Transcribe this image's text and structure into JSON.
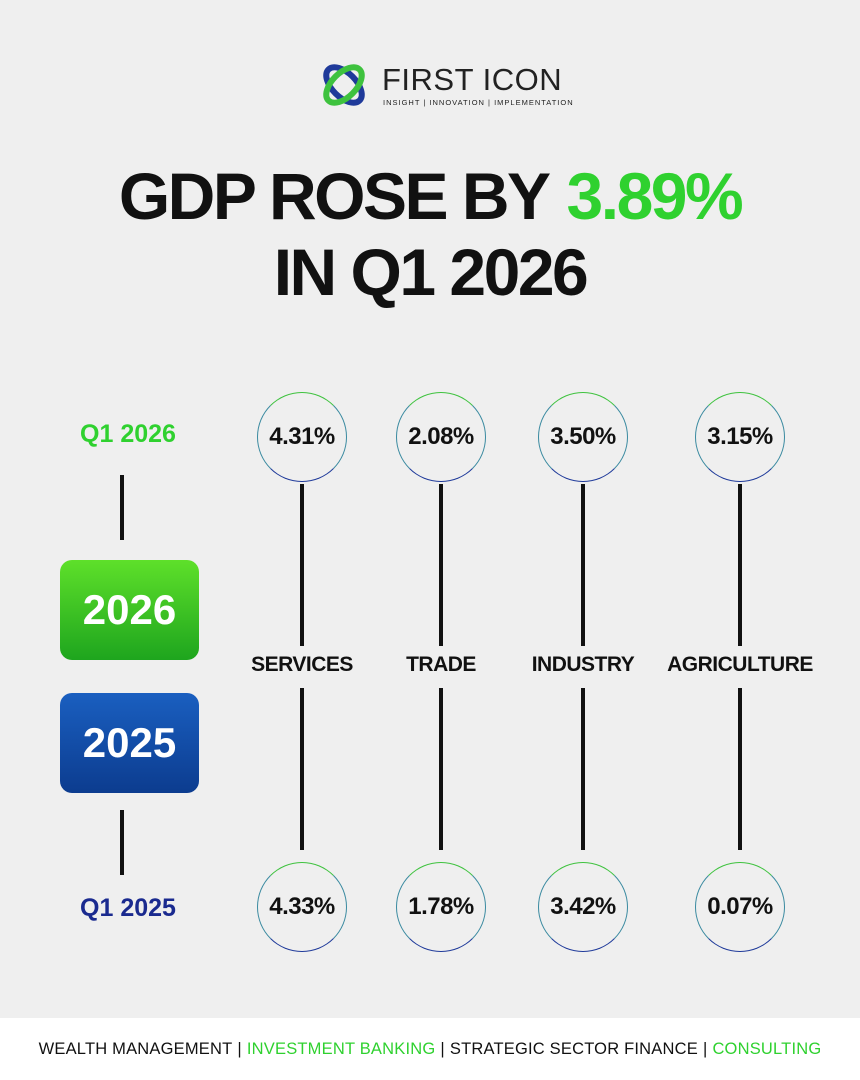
{
  "logo": {
    "name": "FIRST ICON",
    "tagline": "INSIGHT | INNOVATION | IMPLEMENTATION"
  },
  "headline": {
    "lead": "GDP ROSE BY",
    "highlight": "3.89%",
    "line2": "IN Q1 2026"
  },
  "rows": {
    "top_label": "Q1 2026",
    "bottom_label": "Q1 2025",
    "top_year": "2026",
    "bottom_year": "2025"
  },
  "sectors": [
    {
      "name": "SERVICES",
      "q1_2026": "4.31%",
      "q1_2025": "4.33%"
    },
    {
      "name": "TRADE",
      "q1_2026": "2.08%",
      "q1_2025": "1.78%"
    },
    {
      "name": "INDUSTRY",
      "q1_2026": "3.50%",
      "q1_2025": "3.42%"
    },
    {
      "name": "AGRICULTURE",
      "q1_2026": "3.15%",
      "q1_2025": "0.07%"
    }
  ],
  "footer": {
    "separator": "|",
    "items": [
      "WEALTH MANAGEMENT",
      "INVESTMENT BANKING",
      "STRATEGIC SECTOR FINANCE",
      "CONSULTING"
    ]
  }
}
